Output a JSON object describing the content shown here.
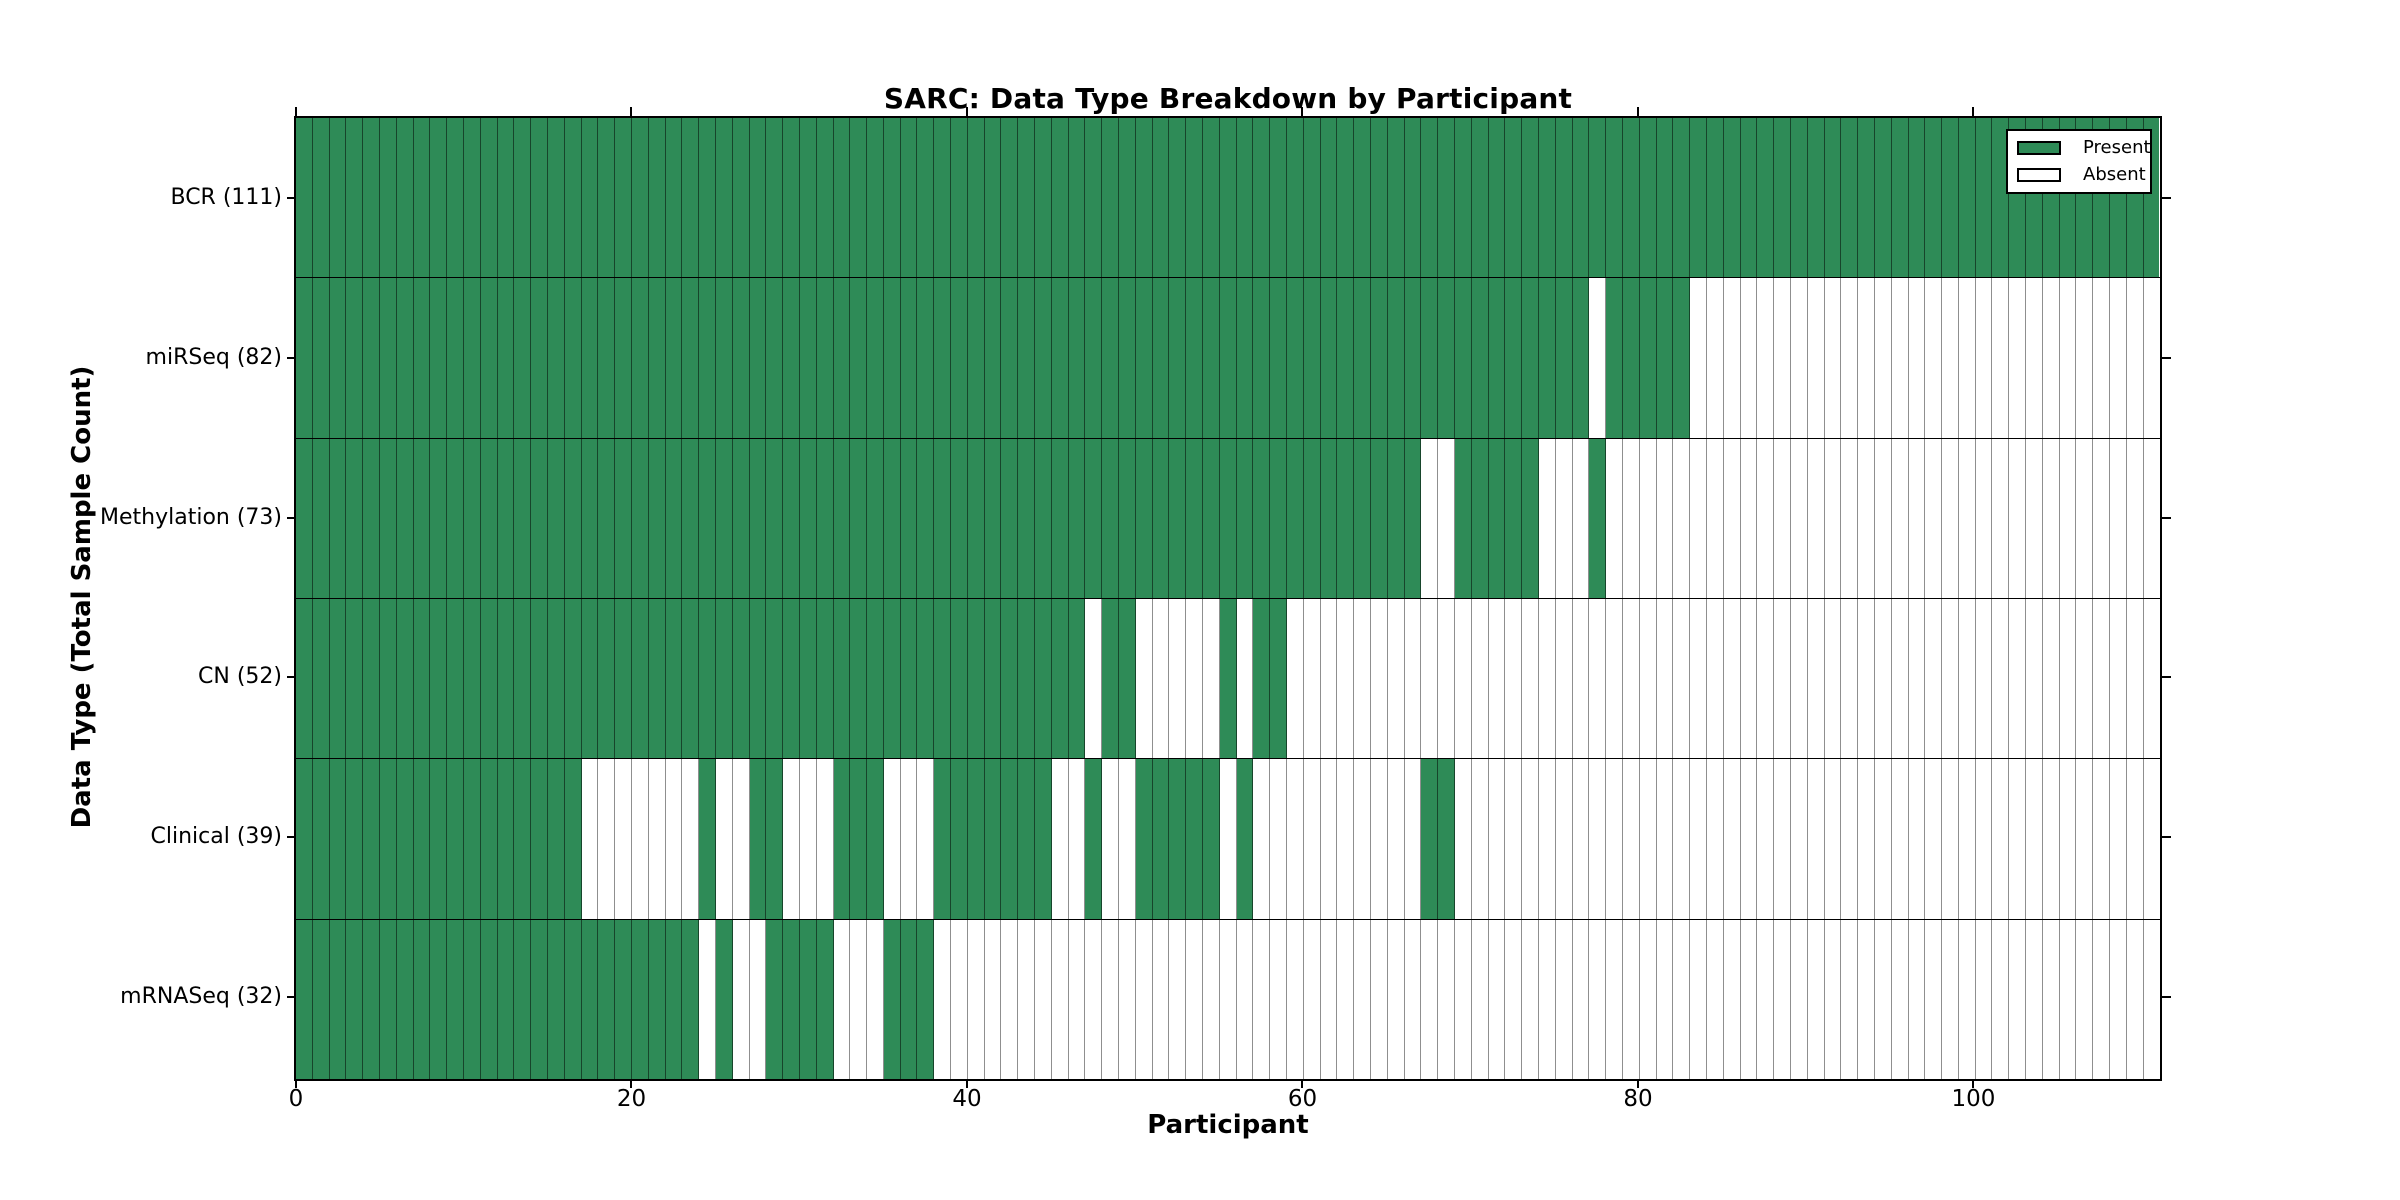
{
  "title": "SARC: Data Type Breakdown by Participant",
  "xlabel": "Participant",
  "ylabel": "Data Type (Total Sample Count)",
  "legend": {
    "items": [
      {
        "label": "Present",
        "swatch": "present"
      },
      {
        "label": "Absent",
        "swatch": "absent"
      }
    ]
  },
  "colors": {
    "present": "#2e8b57",
    "absent": "#ffffff",
    "present_edge": "rgba(0,0,0,0.5)",
    "absent_edge": "#8f8f8f",
    "spine": "#000000"
  },
  "x_axis": {
    "tick_values": [
      0,
      20,
      40,
      60,
      80,
      100
    ],
    "tick_labels": [
      "0",
      "20",
      "40",
      "60",
      "80",
      "100"
    ]
  },
  "chart_data": {
    "type": "heatmap",
    "subtype": "presence-absence-matrix",
    "title": "SARC: Data Type Breakdown by Participant",
    "xlabel": "Participant",
    "ylabel": "Data Type (Total Sample Count)",
    "x_range": [
      0,
      111
    ],
    "n_participants": 111,
    "grid": true,
    "legend_position": "upper-right",
    "value_legend": {
      "present": 1,
      "absent": 0
    },
    "rows": [
      {
        "name": "BCR",
        "label": "BCR (111)",
        "count": 111,
        "present_ranges": [
          [
            0,
            110
          ]
        ]
      },
      {
        "name": "miRSeq",
        "label": "miRSeq (82)",
        "count": 82,
        "present_ranges": [
          [
            0,
            76
          ],
          [
            78,
            82
          ]
        ]
      },
      {
        "name": "Methylation",
        "label": "Methylation (73)",
        "count": 73,
        "present_ranges": [
          [
            0,
            66
          ],
          [
            69,
            73
          ],
          [
            77,
            77
          ]
        ]
      },
      {
        "name": "CN",
        "label": "CN (52)",
        "count": 52,
        "present_ranges": [
          [
            0,
            46
          ],
          [
            48,
            49
          ],
          [
            55,
            55
          ],
          [
            57,
            58
          ]
        ]
      },
      {
        "name": "Clinical",
        "label": "Clinical (39)",
        "count": 39,
        "present_ranges": [
          [
            0,
            16
          ],
          [
            24,
            24
          ],
          [
            27,
            28
          ],
          [
            32,
            34
          ],
          [
            38,
            44
          ],
          [
            47,
            47
          ],
          [
            50,
            54
          ],
          [
            56,
            56
          ],
          [
            67,
            68
          ]
        ]
      },
      {
        "name": "mRNASeq",
        "label": "mRNASeq (32)",
        "count": 32,
        "present_ranges": [
          [
            0,
            23
          ],
          [
            25,
            25
          ],
          [
            28,
            31
          ],
          [
            35,
            37
          ]
        ]
      }
    ]
  }
}
